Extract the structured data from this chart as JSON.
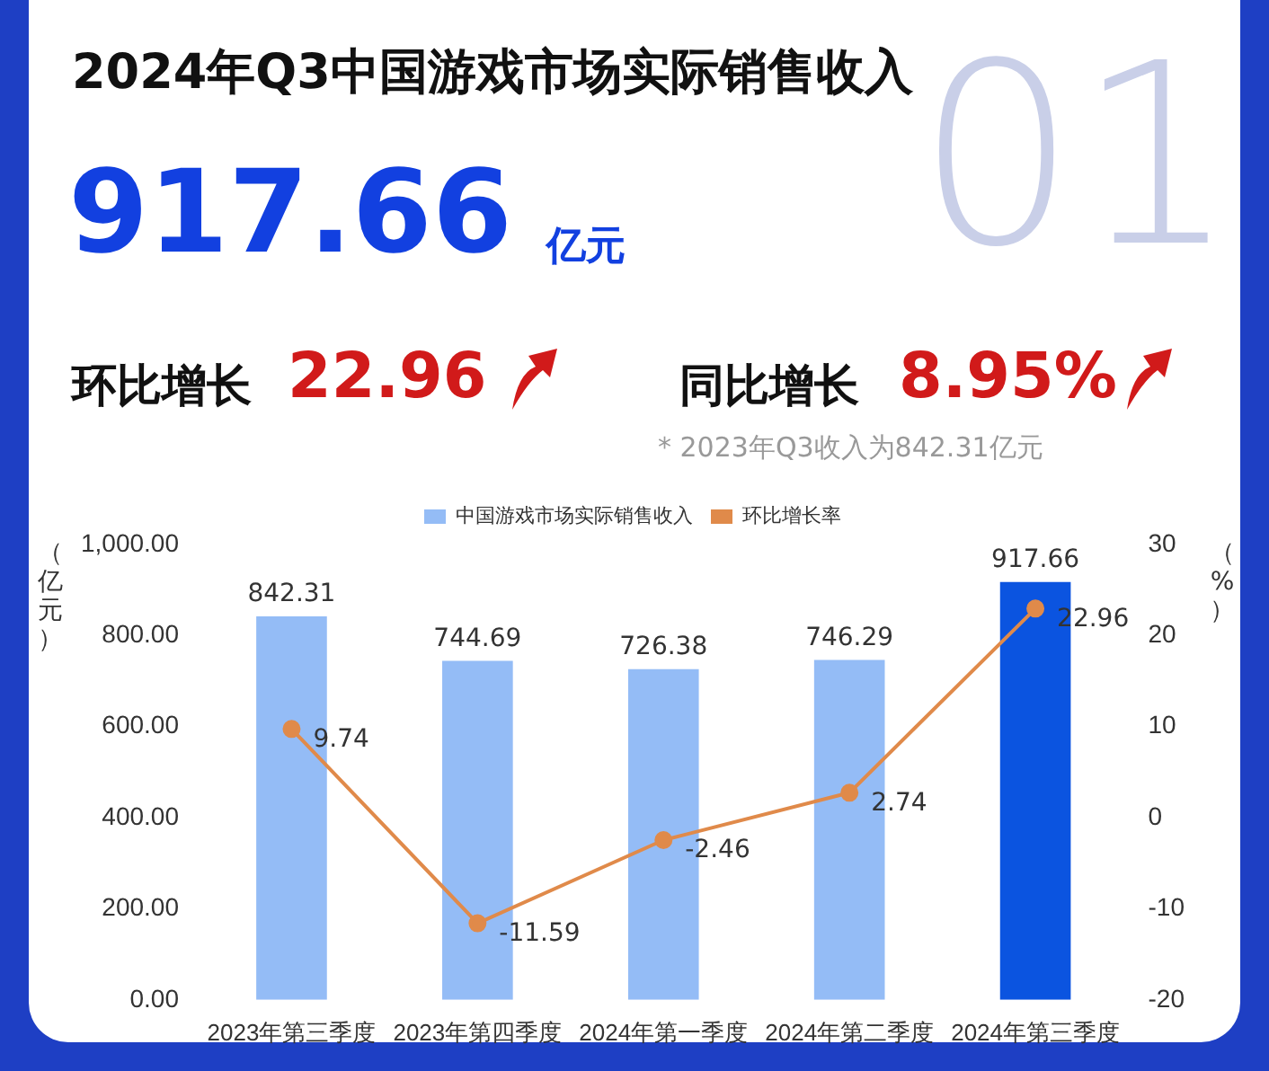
{
  "chart_data": {
    "type": "bar",
    "title": "2024年Q3中国游戏市场实际销售收入",
    "annotations": [
      "917.66",
      "亿元",
      "环比增长",
      "22.96",
      "同比增长",
      "8.95%",
      "* 2023年Q3收入为842.31亿元",
      "01"
    ],
    "ylabel": "（亿元）",
    "y2label": "（%）",
    "categories": [
      "2023年第三季度",
      "2023年第四季度",
      "2024年第一季度",
      "2024年第二季度",
      "2024年第三季度"
    ],
    "series": [
      {
        "name": "中国游戏市场实际销售收入",
        "colors": [
          "#94bcf6",
          "#94bcf6",
          "#94bcf6",
          "#94bcf6",
          "#0b54e0"
        ],
        "color": "#94bcf6",
        "values": [
          842.31,
          744.69,
          726.38,
          746.29,
          917.66
        ]
      },
      {
        "name": "环比增长率",
        "type": "line",
        "axis": "y2",
        "color": "#e08a4a",
        "values": [
          9.74,
          -11.59,
          -2.46,
          2.74,
          22.96
        ]
      }
    ],
    "ylim": [
      0,
      1000
    ],
    "yticks": [
      {
        "value": 0,
        "label": "0.00"
      },
      {
        "value": 200,
        "label": "200.00"
      },
      {
        "value": 400,
        "label": "400.00"
      },
      {
        "value": 600,
        "label": "600.00"
      },
      {
        "value": 800,
        "label": "800.00"
      },
      {
        "value": 1000,
        "label": "1,000.00"
      }
    ],
    "y2lim": [
      -20,
      30
    ],
    "y2ticks": [
      -20,
      -10,
      0,
      10,
      20,
      30
    ],
    "data_labels": true,
    "grid": false,
    "legend": "top",
    "marker": "circle",
    "line_style": "solid"
  }
}
